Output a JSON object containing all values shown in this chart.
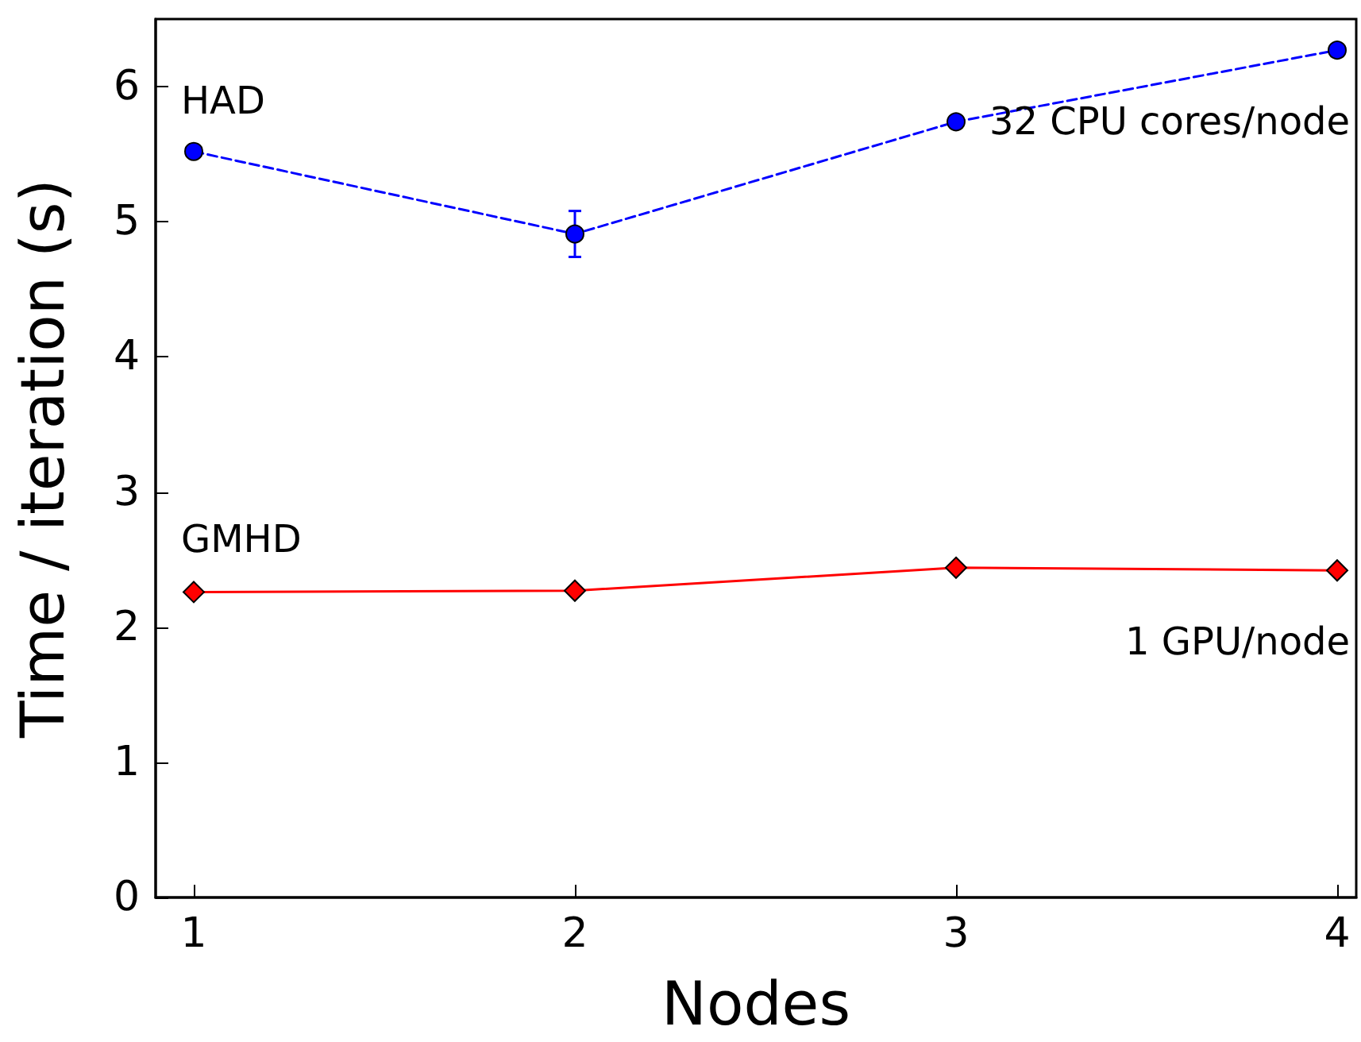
{
  "chart_data": {
    "type": "line",
    "xlabel": "Nodes",
    "ylabel": "Time / iteration (s)",
    "x": [
      1,
      2,
      3,
      4
    ],
    "series": [
      {
        "name": "HAD",
        "color": "#0000ff",
        "values": [
          5.52,
          4.91,
          5.74,
          6.27
        ],
        "errors": [
          null,
          [
            4.74,
            5.08
          ],
          null,
          null
        ],
        "marker": "circle",
        "line_style": "dashed"
      },
      {
        "name": "GMHD",
        "color": "#ff0000",
        "values": [
          2.26,
          2.27,
          2.44,
          2.42
        ],
        "marker": "diamond",
        "line_style": "solid"
      }
    ],
    "annotations": [
      "32 CPU cores/node",
      "1 GPU/node"
    ],
    "xlim": [
      0.9,
      4.05
    ],
    "xticks": [
      1,
      2,
      3,
      4
    ],
    "ylim": [
      0,
      6.5
    ],
    "yticks": [
      0,
      1,
      2,
      3,
      4,
      5,
      6
    ],
    "grid": false,
    "legend": false
  }
}
